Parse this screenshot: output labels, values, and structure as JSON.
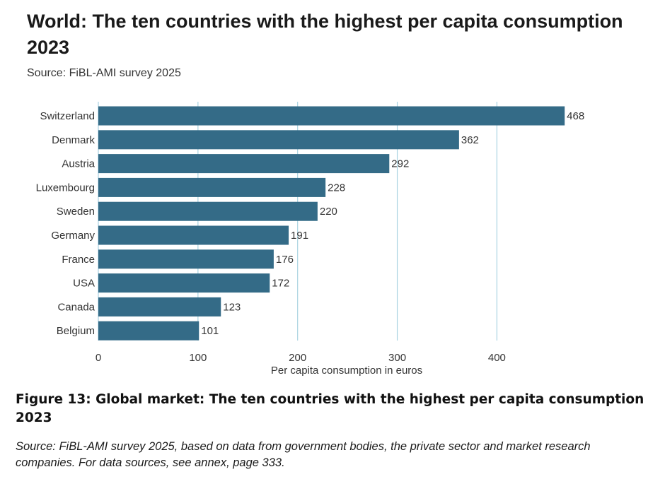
{
  "chart_data": {
    "type": "bar",
    "orientation": "horizontal",
    "title": "World: The ten countries with the highest per capita consumption 2023",
    "subtitle": "Source: FiBL-AMI survey 2025",
    "categories": [
      "Switzerland",
      "Denmark",
      "Austria",
      "Luxembourg",
      "Sweden",
      "Germany",
      "France",
      "USA",
      "Canada",
      "Belgium"
    ],
    "values": [
      468,
      362,
      292,
      228,
      220,
      191,
      176,
      172,
      123,
      101
    ],
    "xlabel": "Per capita consumption in euros",
    "ylabel": "",
    "xlim": [
      0,
      480
    ],
    "xticks": [
      0,
      100,
      200,
      300,
      400
    ],
    "grid": true,
    "bar_color": "#346b87",
    "grid_color": "#a9d3e2"
  },
  "caption": {
    "figure": "Figure 13: Global market: The ten countries with the highest per capita consumption 2023",
    "source": "Source: FiBL-AMI survey 2025, based on data from government bodies, the private sector and market research companies. For data sources, see annex, page 333."
  }
}
